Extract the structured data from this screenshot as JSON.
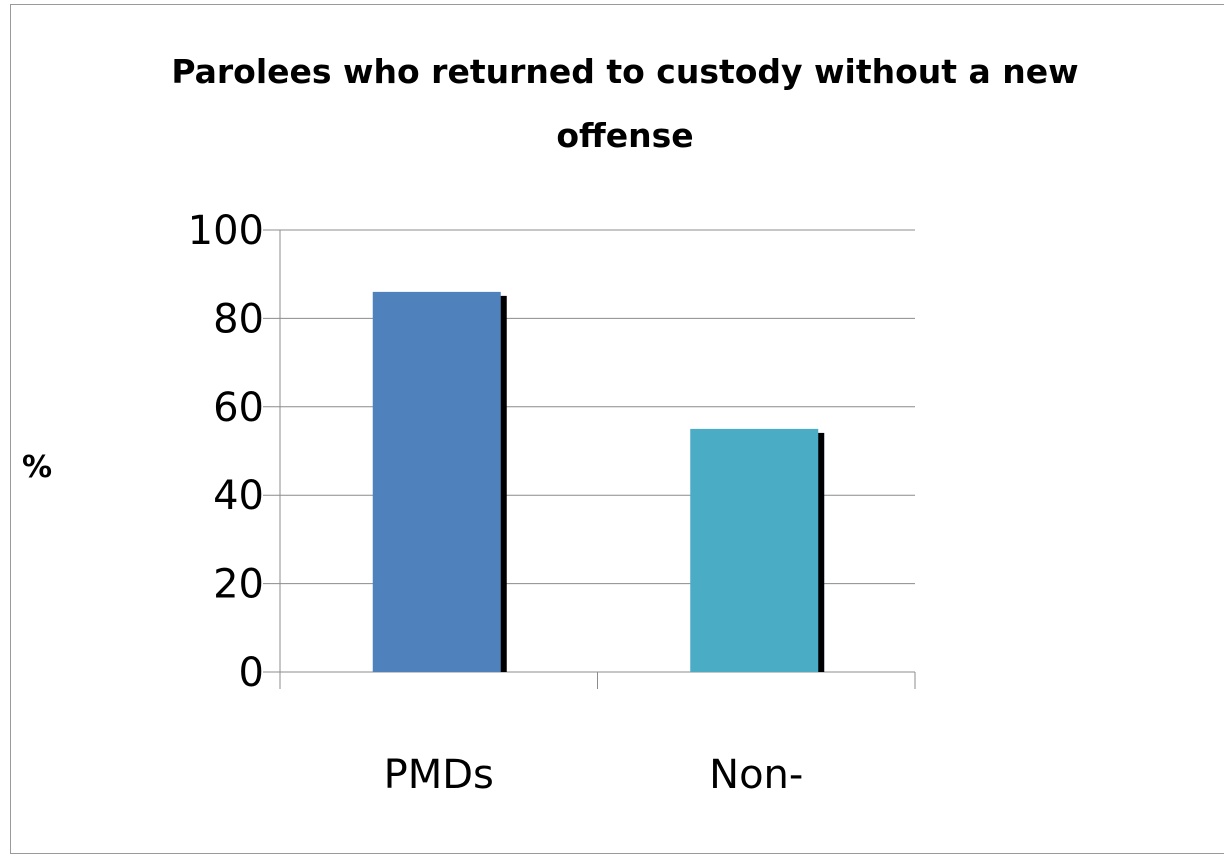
{
  "chart_data": {
    "type": "bar",
    "title": "Parolees who returned to custody without a new offense",
    "xlabel": "",
    "ylabel": "%",
    "categories": [
      "PMDs",
      "Non-"
    ],
    "values": [
      86,
      55
    ],
    "ylim": [
      0,
      100
    ],
    "yticks": [
      0,
      20,
      40,
      60,
      80,
      100
    ],
    "grid": true,
    "legend": "none",
    "colors": [
      "#4f81bd",
      "#4bacc6"
    ],
    "shadow_color": "#000000",
    "gridline_color": "#8c8c8c"
  }
}
